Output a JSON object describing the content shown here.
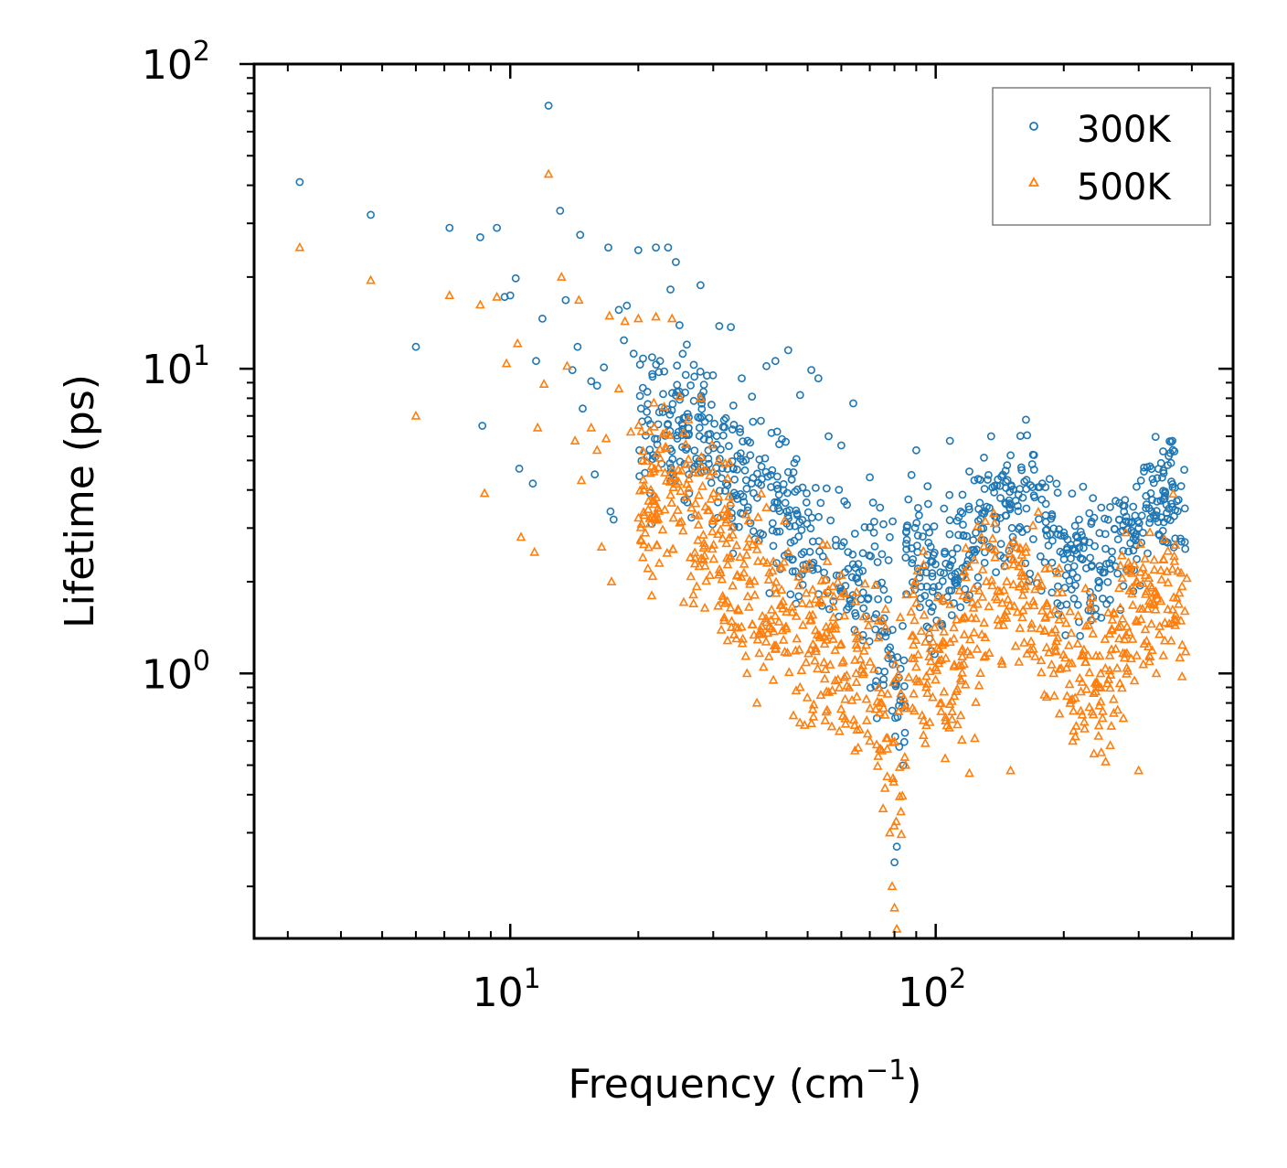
{
  "chart_data": {
    "type": "scatter",
    "title": "",
    "xlabel": "Frequency (cm",
    "xlabel_exp": "−1",
    "xlabel_suffix": ")",
    "ylabel": "Lifetime (ps)",
    "xscale": "log",
    "yscale": "log",
    "xlim": [
      2.5,
      500
    ],
    "ylim": [
      0.135,
      100
    ],
    "x_ticks": [
      {
        "value": 10,
        "base": "10",
        "exp": "1"
      },
      {
        "value": 100,
        "base": "10",
        "exp": "2"
      }
    ],
    "y_ticks": [
      {
        "value": 1,
        "base": "10",
        "exp": "0"
      },
      {
        "value": 10,
        "base": "10",
        "exp": "1"
      },
      {
        "value": 100,
        "base": "10",
        "exp": "2"
      }
    ],
    "legend_position": "top-right",
    "series": [
      {
        "name": "300K",
        "marker": "circle",
        "color": "#1f77b4",
        "points": [
          [
            3.2,
            41
          ],
          [
            4.7,
            32
          ],
          [
            6.0,
            11.8
          ],
          [
            7.2,
            29
          ],
          [
            8.5,
            27
          ],
          [
            8.6,
            6.5
          ],
          [
            9.3,
            29
          ],
          [
            9.7,
            17.2
          ],
          [
            10.0,
            17.4
          ],
          [
            10.3,
            19.8
          ],
          [
            10.5,
            4.7
          ],
          [
            11.3,
            4.2
          ],
          [
            11.5,
            10.6
          ],
          [
            11.9,
            14.6
          ],
          [
            12.3,
            73
          ],
          [
            13.1,
            33
          ],
          [
            13.5,
            16.8
          ],
          [
            14.0,
            9.9
          ],
          [
            14.4,
            11.8
          ],
          [
            14.6,
            27.5
          ],
          [
            14.8,
            7.4
          ],
          [
            15.5,
            9.1
          ],
          [
            15.8,
            4.5
          ],
          [
            16.0,
            8.8
          ],
          [
            16.6,
            10.1
          ],
          [
            17.0,
            25
          ],
          [
            17.2,
            3.4
          ],
          [
            17.5,
            3.2
          ],
          [
            18.0,
            15.6
          ],
          [
            18.5,
            12.4
          ],
          [
            18.8,
            16.1
          ],
          [
            19.5,
            11.2
          ],
          [
            20.0,
            24.5
          ],
          [
            20.3,
            7.4
          ],
          [
            21.0,
            8.4
          ],
          [
            21.5,
            3.1
          ],
          [
            22.0,
            25
          ],
          [
            22.5,
            10.6
          ],
          [
            23.0,
            9.8
          ],
          [
            23.5,
            25
          ],
          [
            23.8,
            18.2
          ],
          [
            24.5,
            22.4
          ],
          [
            25.0,
            13.9
          ],
          [
            26.0,
            12.0
          ],
          [
            27.0,
            10.3
          ],
          [
            28.0,
            18.8
          ],
          [
            29.0,
            9.5
          ],
          [
            31.0,
            13.8
          ],
          [
            33.0,
            13.7
          ],
          [
            35.0,
            9.3
          ],
          [
            37.0,
            8.1
          ],
          [
            40.0,
            10.2
          ],
          [
            42.0,
            10.6
          ],
          [
            45.0,
            11.5
          ],
          [
            48.0,
            8.2
          ],
          [
            51.0,
            9.9
          ],
          [
            53.0,
            9.3
          ],
          [
            56.0,
            6.0
          ],
          [
            60.0,
            5.6
          ],
          [
            64.0,
            7.7
          ],
          [
            70.0,
            4.4
          ],
          [
            74.0,
            3.5
          ],
          [
            78.0,
            2.8
          ],
          [
            80.0,
            0.24
          ],
          [
            81.0,
            0.27
          ],
          [
            85.0,
            2.4
          ],
          [
            90.0,
            5.4
          ],
          [
            96.0,
            3.6
          ],
          [
            108.0,
            5.8
          ],
          [
            120.0,
            4.6
          ],
          [
            135.0,
            6.0
          ],
          [
            150.0,
            5.2
          ],
          [
            163.0,
            6.8
          ],
          [
            178.0,
            4.2
          ],
          [
            200.0,
            2.9
          ],
          [
            222.0,
            4.1
          ],
          [
            245.0,
            3.5
          ],
          [
            270.0,
            3.2
          ],
          [
            300.0,
            3.0
          ],
          [
            330.0,
            3.3
          ],
          [
            360.0,
            5.8
          ],
          [
            385.0,
            2.7
          ]
        ]
      },
      {
        "name": "500K",
        "marker": "triangle",
        "color": "#ff7f0e",
        "points": [
          [
            3.2,
            25
          ],
          [
            4.7,
            19.5
          ],
          [
            6.0,
            7.0
          ],
          [
            7.2,
            17.4
          ],
          [
            8.5,
            16.2
          ],
          [
            8.7,
            3.9
          ],
          [
            9.3,
            17.2
          ],
          [
            9.8,
            10.4
          ],
          [
            10.4,
            12.1
          ],
          [
            10.6,
            2.8
          ],
          [
            11.4,
            2.5
          ],
          [
            11.6,
            6.4
          ],
          [
            12.0,
            8.9
          ],
          [
            12.3,
            43.5
          ],
          [
            13.2,
            20
          ],
          [
            13.6,
            10.2
          ],
          [
            14.2,
            5.8
          ],
          [
            14.5,
            16.8
          ],
          [
            14.7,
            4.3
          ],
          [
            15.5,
            6.4
          ],
          [
            16.0,
            5.4
          ],
          [
            16.4,
            2.6
          ],
          [
            16.8,
            5.9
          ],
          [
            17.1,
            14.9
          ],
          [
            17.3,
            2.0
          ],
          [
            18.0,
            8.6
          ],
          [
            18.6,
            14.3
          ],
          [
            19.2,
            6.2
          ],
          [
            20.0,
            14.6
          ],
          [
            20.5,
            2.4
          ],
          [
            21.3,
            3.1
          ],
          [
            21.5,
            1.8
          ],
          [
            22.0,
            14.8
          ],
          [
            23.0,
            7.5
          ],
          [
            24.0,
            14.6
          ],
          [
            25.0,
            8.1
          ],
          [
            26.5,
            2.4
          ],
          [
            28.0,
            8.0
          ],
          [
            30.0,
            4.6
          ],
          [
            32.0,
            1.7
          ],
          [
            34.0,
            1.3
          ],
          [
            36.0,
            1.0
          ],
          [
            38.0,
            0.8
          ],
          [
            40.0,
            3.5
          ],
          [
            42.0,
            1.2
          ],
          [
            45.0,
            2.5
          ],
          [
            48.0,
            0.9
          ],
          [
            52.0,
            1.1
          ],
          [
            55.0,
            0.7
          ],
          [
            60.0,
            2.1
          ],
          [
            65.0,
            1.0
          ],
          [
            70.0,
            0.6
          ],
          [
            74.0,
            0.8
          ],
          [
            76.0,
            0.42
          ],
          [
            78.0,
            0.3
          ],
          [
            79.0,
            0.2
          ],
          [
            80.0,
            0.17
          ],
          [
            81.0,
            0.145
          ],
          [
            85.0,
            0.5
          ],
          [
            90.0,
            1.7
          ],
          [
            95.0,
            0.9
          ],
          [
            103.0,
            0.75
          ],
          [
            112.0,
            1.5
          ],
          [
            120.0,
            0.47
          ],
          [
            128.0,
            2.8
          ],
          [
            140.0,
            1.5
          ],
          [
            150.0,
            0.48
          ],
          [
            163.0,
            2.5
          ],
          [
            180.0,
            0.85
          ],
          [
            195.0,
            1.5
          ],
          [
            210.0,
            0.6
          ],
          [
            225.0,
            1.9
          ],
          [
            245.0,
            0.55
          ],
          [
            270.0,
            1.3
          ],
          [
            300.0,
            0.48
          ],
          [
            330.0,
            1.0
          ],
          [
            360.0,
            2.2
          ],
          [
            385.0,
            1.6
          ]
        ]
      }
    ]
  }
}
